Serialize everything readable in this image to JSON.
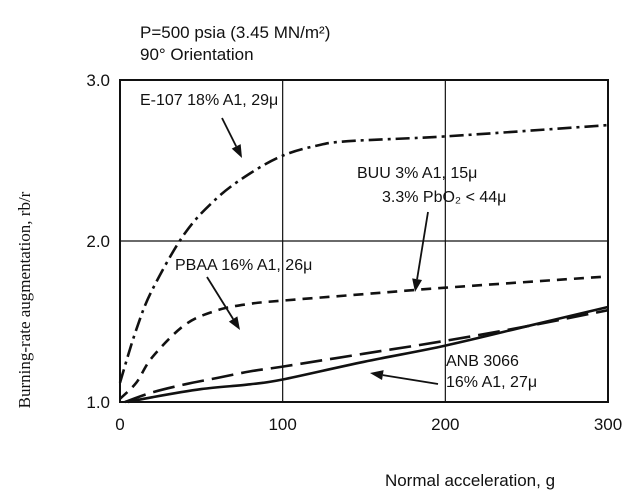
{
  "chart_data": {
    "type": "line",
    "header_line1": "P=500 psia (3.45 MN/m²)",
    "header_line2": "90° Orientation",
    "xlabel": "Normal acceleration, g",
    "ylabel": "Burning-rate augmentation, rb/r",
    "xlim": [
      0,
      300
    ],
    "ylim": [
      1.0,
      3.0
    ],
    "x_ticks": [
      0,
      100,
      200,
      300
    ],
    "x_tick_labels": [
      "0",
      "100",
      "200",
      "300"
    ],
    "y_ticks": [
      1.0,
      2.0,
      3.0
    ],
    "y_tick_labels": [
      "1.0",
      "2.0",
      "3.0"
    ],
    "grid": "major",
    "series": [
      {
        "name": "E-107 18% Al, 29μ",
        "style": "dash-dot",
        "x": [
          0,
          10,
          20,
          40,
          60,
          80,
          100,
          120,
          140,
          200,
          300
        ],
        "y": [
          1.12,
          1.45,
          1.7,
          2.05,
          2.27,
          2.42,
          2.53,
          2.59,
          2.62,
          2.65,
          2.72
        ]
      },
      {
        "name": "BUU 3% Al, 15μ / 3.3% PbO2 < 44μ",
        "style": "dash",
        "x": [
          0,
          10,
          20,
          40,
          60,
          80,
          100,
          150,
          200,
          300
        ],
        "y": [
          1.02,
          1.12,
          1.28,
          1.48,
          1.57,
          1.61,
          1.63,
          1.67,
          1.71,
          1.78
        ]
      },
      {
        "name": "PBAA 16% Al, 26μ",
        "style": "long-dash",
        "x": [
          3,
          20,
          40,
          60,
          80,
          100,
          150,
          200,
          250,
          300
        ],
        "y": [
          1.0,
          1.06,
          1.11,
          1.15,
          1.19,
          1.22,
          1.3,
          1.38,
          1.47,
          1.57
        ]
      },
      {
        "name": "ANB 3066 16% Al, 27μ",
        "style": "solid",
        "x": [
          5,
          20,
          50,
          80,
          100,
          150,
          200,
          250,
          300
        ],
        "y": [
          1.0,
          1.03,
          1.08,
          1.11,
          1.14,
          1.25,
          1.35,
          1.47,
          1.59
        ]
      }
    ],
    "annotations": [
      {
        "id": "e107",
        "lines": [
          "E-107 18% A1, 29μ"
        ]
      },
      {
        "id": "buu",
        "lines": [
          "BUU 3% A1, 15μ",
          "3.3% PbO₂ < 44μ"
        ]
      },
      {
        "id": "pbaa",
        "lines": [
          "PBAA 16% A1, 26μ"
        ]
      },
      {
        "id": "anb",
        "lines": [
          "ANB 3066",
          "16% A1, 27μ"
        ]
      }
    ]
  }
}
